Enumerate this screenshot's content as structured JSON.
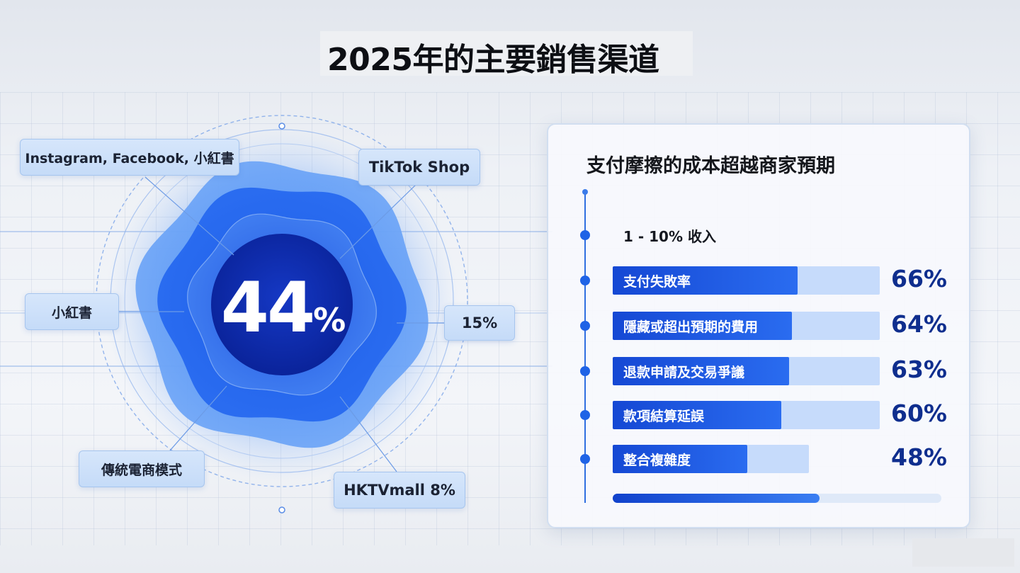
{
  "title": "2025年的主要銷售渠道",
  "colors": {
    "accent": "#1f5ae6",
    "accent_dark": "#0d2fa8",
    "value_text": "#0f2e8e",
    "bar_track": "#c6dbfb",
    "label_box": "#cfe2fa"
  },
  "ring_chart": {
    "center_value": "44",
    "center_unit": "%",
    "labels": {
      "social": "Instagram, Facebook, 小紅書",
      "tiktok": "TikTok Shop",
      "xhs": "小紅書",
      "pct15": "15%",
      "traditional": "傳統電商模式",
      "hktv": "HKTVmall 8%"
    }
  },
  "card": {
    "title": "支付摩擦的成本超越商家預期",
    "income_label": "1 - 10% 收入",
    "progress_fraction": 0.63
  },
  "chart_data": [
    {
      "type": "pie",
      "center_value": 44,
      "unit": "%",
      "segments": [
        {
          "label": "Instagram, Facebook, 小紅書"
        },
        {
          "label": "TikTok Shop"
        },
        {
          "label": "小紅書"
        },
        {
          "label": "15%",
          "value": 15
        },
        {
          "label": "傳統電商模式"
        },
        {
          "label": "HKTVmall 8%",
          "value": 8
        }
      ]
    },
    {
      "type": "bar",
      "title": "支付摩擦的成本超越商家預期",
      "subtitle": "1 - 10% 收入",
      "categories": [
        "支付失敗率",
        "隱藏或超出預期的費用",
        "退款申請及交易爭議",
        "款項結算延誤",
        "整合複雜度"
      ],
      "values": [
        66,
        64,
        63,
        60,
        48
      ],
      "value_labels": [
        "66%",
        "64%",
        "63%",
        "60%",
        "48%"
      ],
      "unit": "%",
      "track_extent": [
        1,
        1,
        1,
        1,
        0.735
      ]
    }
  ]
}
